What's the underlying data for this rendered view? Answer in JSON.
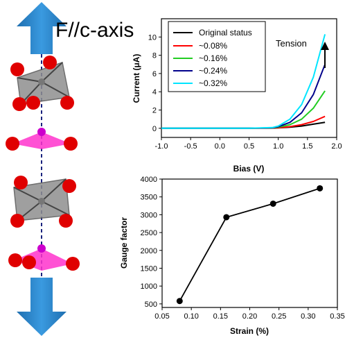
{
  "structure": {
    "label": "F//c-axis"
  },
  "chart_data": [
    {
      "type": "line",
      "xlabel": "Bias (V)",
      "ylabel": "Current (μA)",
      "xlim": [
        -1.0,
        2.0
      ],
      "ylim": [
        -1,
        12
      ],
      "xticks": [
        "-1.0",
        "-0.5",
        "0.0",
        "0.5",
        "1.0",
        "1.5",
        "2.0"
      ],
      "yticks": [
        "0",
        "2",
        "4",
        "6",
        "8",
        "10"
      ],
      "annotation": "Tension",
      "legend": "top-left",
      "series": [
        {
          "name": "Original status",
          "color": "#000000",
          "x": [
            -1.0,
            0.5,
            0.9,
            1.0,
            1.2,
            1.4,
            1.6,
            1.8
          ],
          "y": [
            0,
            0,
            0.02,
            0.05,
            0.12,
            0.25,
            0.45,
            0.65
          ]
        },
        {
          "name": "~0.08%",
          "color": "#ff0000",
          "x": [
            -1.0,
            0.5,
            0.9,
            1.0,
            1.2,
            1.4,
            1.6,
            1.8
          ],
          "y": [
            0,
            0,
            0.03,
            0.06,
            0.18,
            0.4,
            0.75,
            1.3
          ]
        },
        {
          "name": "~0.16%",
          "color": "#22cc22",
          "x": [
            -1.0,
            0.5,
            0.9,
            1.0,
            1.2,
            1.4,
            1.6,
            1.8
          ],
          "y": [
            0,
            0,
            0.05,
            0.12,
            0.4,
            1.0,
            2.2,
            4.1
          ]
        },
        {
          "name": "~0.24%",
          "color": "#00008b",
          "x": [
            -1.0,
            0.5,
            0.9,
            1.0,
            1.2,
            1.4,
            1.6,
            1.8
          ],
          "y": [
            0,
            0,
            0.06,
            0.18,
            0.65,
            1.7,
            3.7,
            7.0
          ]
        },
        {
          "name": "~0.32%",
          "color": "#00e5ff",
          "x": [
            -1.0,
            0.5,
            0.9,
            1.0,
            1.2,
            1.4,
            1.6,
            1.8
          ],
          "y": [
            0,
            0,
            0.08,
            0.25,
            1.0,
            2.6,
            5.6,
            10.3
          ]
        }
      ]
    },
    {
      "type": "line",
      "xlabel": "Strain (%)",
      "ylabel": "Gauge factor",
      "xlim": [
        0.05,
        0.35
      ],
      "ylim": [
        400,
        4000
      ],
      "xticks": [
        "0.05",
        "0.10",
        "0.15",
        "0.20",
        "0.25",
        "0.30",
        "0.35"
      ],
      "yticks": [
        "500",
        "1000",
        "1500",
        "2000",
        "2500",
        "3000",
        "3500",
        "4000"
      ],
      "series": [
        {
          "x": [
            0.08,
            0.16,
            0.24,
            0.32
          ],
          "y": [
            580,
            2930,
            3310,
            3740
          ]
        }
      ]
    }
  ]
}
